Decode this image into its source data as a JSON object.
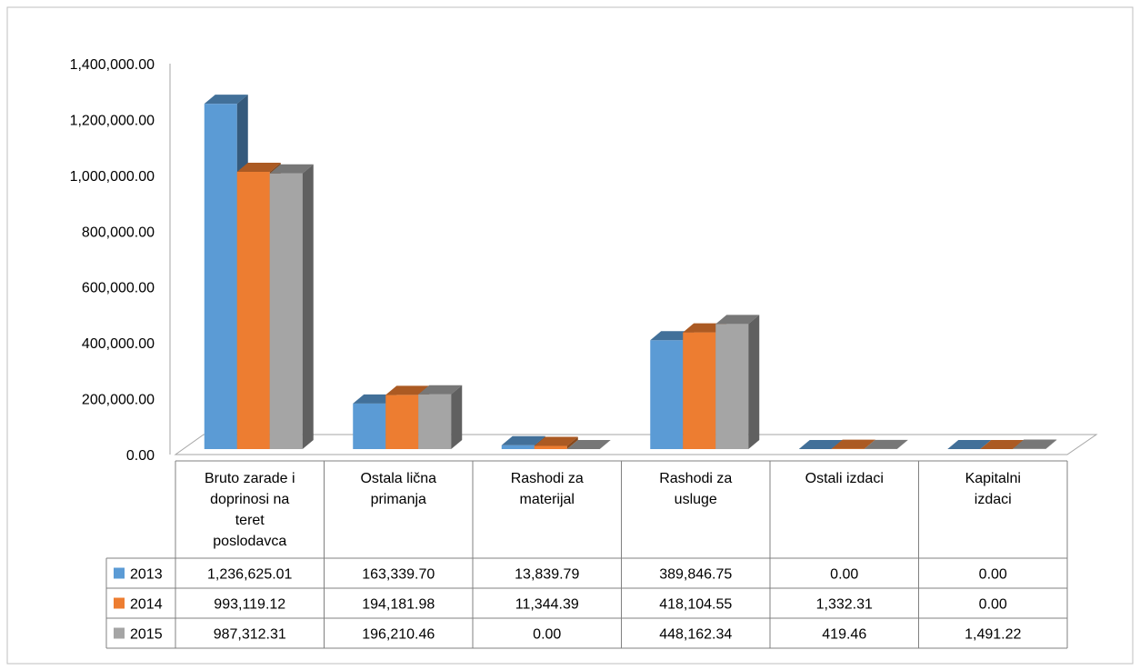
{
  "chart_data": {
    "type": "bar",
    "style": "3d-clustered-column with data table",
    "categories": [
      "Bruto zarade i doprinosi na teret poslodavca",
      "Ostala lična primanja",
      "Rashodi za materijal",
      "Rashodi za usluge",
      "Ostali izdaci",
      "Kapitalni izdaci"
    ],
    "category_lines": [
      [
        "Bruto zarade i",
        "doprinosi na",
        "teret",
        "poslodavca"
      ],
      [
        "Ostala lična",
        "primanja"
      ],
      [
        "Rashodi za",
        "materijal"
      ],
      [
        "Rashodi za",
        "usluge"
      ],
      [
        "Ostali izdaci"
      ],
      [
        "Kapitalni",
        "izdaci"
      ]
    ],
    "series": [
      {
        "name": "2013",
        "color": "#5B9BD5",
        "values": [
          1236625.01,
          163339.7,
          13839.79,
          389846.75,
          0.0,
          0.0
        ],
        "labels": [
          "1,236,625.01",
          "163,339.70",
          "13,839.79",
          "389,846.75",
          "0.00",
          "0.00"
        ]
      },
      {
        "name": "2014",
        "color": "#ED7D31",
        "values": [
          993119.12,
          194181.98,
          11344.39,
          418104.55,
          1332.31,
          0.0
        ],
        "labels": [
          "993,119.12",
          "194,181.98",
          "11,344.39",
          "418,104.55",
          "1,332.31",
          "0.00"
        ]
      },
      {
        "name": "2015",
        "color": "#A5A5A5",
        "values": [
          987312.31,
          196210.46,
          0.0,
          448162.34,
          419.46,
          1491.22
        ],
        "labels": [
          "987,312.31",
          "196,210.46",
          "0.00",
          "448,162.34",
          "419.46",
          "1,491.22"
        ]
      }
    ],
    "yticks": [
      "0.00",
      "200,000.00",
      "400,000.00",
      "600,000.00",
      "800,000.00",
      "1,000,000.00",
      "1,200,000.00",
      "1,400,000.00"
    ],
    "ylim": [
      0,
      1400000
    ],
    "title": "",
    "xlabel": "",
    "ylabel": "",
    "grid": false,
    "legend": "in data table"
  }
}
